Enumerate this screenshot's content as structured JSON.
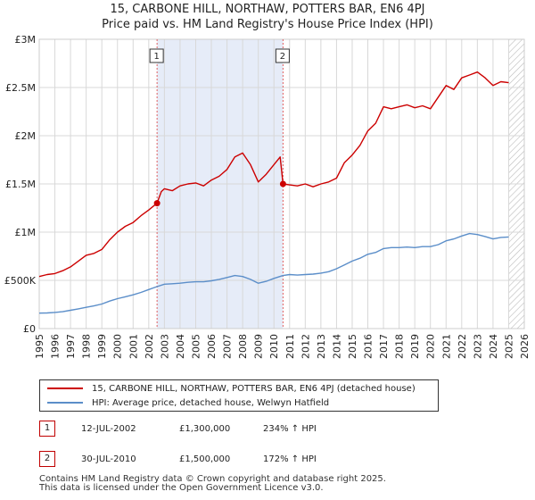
{
  "header": {
    "title_line1": "15, CARBONE HILL, NORTHAW, POTTERS BAR, EN6 4PJ",
    "title_line2": "Price paid vs. HM Land Registry's House Price Index (HPI)"
  },
  "chart_data": {
    "type": "line",
    "title": "15, CARBONE HILL, NORTHAW, POTTERS BAR, EN6 4PJ — Price paid vs. HM Land Registry's House Price Index (HPI)",
    "xlim": [
      1995,
      2026
    ],
    "ylim": [
      0,
      3000000
    ],
    "x_ticks": [
      1995,
      1996,
      1997,
      1998,
      1999,
      2000,
      2001,
      2002,
      2003,
      2004,
      2005,
      2006,
      2007,
      2008,
      2009,
      2010,
      2011,
      2012,
      2013,
      2014,
      2015,
      2016,
      2017,
      2018,
      2019,
      2020,
      2021,
      2022,
      2023,
      2024,
      2025,
      2026
    ],
    "y_ticks": [
      {
        "value": 0,
        "label": "£0"
      },
      {
        "value": 500000,
        "label": "£500K"
      },
      {
        "value": 1000000,
        "label": "£1M"
      },
      {
        "value": 1500000,
        "label": "£1.5M"
      },
      {
        "value": 2000000,
        "label": "£2M"
      },
      {
        "value": 2500000,
        "label": "£2.5M"
      },
      {
        "value": 3000000,
        "label": "£3M"
      }
    ],
    "grid": true,
    "shaded_period": [
      2002.53,
      2010.58
    ],
    "future_hatch_from": 2025.0,
    "colors": {
      "property": "#cc0000",
      "hpi": "#5b8ec9",
      "shade": "#e6ecf8",
      "marker_line": "#e06060"
    },
    "series": [
      {
        "name": "15, CARBONE HILL, NORTHAW, POTTERS BAR, EN6 4PJ (detached house)",
        "color": "#cc0000",
        "x": [
          1995.0,
          1995.5,
          1996.0,
          1996.5,
          1997.0,
          1997.5,
          1998.0,
          1998.5,
          1999.0,
          1999.5,
          2000.0,
          2000.5,
          2001.0,
          2001.5,
          2002.0,
          2002.53,
          2002.8,
          2003.0,
          2003.5,
          2004.0,
          2004.5,
          2005.0,
          2005.5,
          2006.0,
          2006.5,
          2007.0,
          2007.5,
          2008.0,
          2008.5,
          2009.0,
          2009.5,
          2010.0,
          2010.4,
          2010.58,
          2011.0,
          2011.5,
          2012.0,
          2012.5,
          2013.0,
          2013.5,
          2014.0,
          2014.5,
          2015.0,
          2015.5,
          2016.0,
          2016.5,
          2017.0,
          2017.5,
          2018.0,
          2018.5,
          2019.0,
          2019.5,
          2020.0,
          2020.5,
          2021.0,
          2021.5,
          2022.0,
          2022.5,
          2023.0,
          2023.5,
          2024.0,
          2024.5,
          2025.0
        ],
        "y": [
          540000,
          560000,
          570000,
          600000,
          640000,
          700000,
          760000,
          780000,
          820000,
          920000,
          1000000,
          1060000,
          1100000,
          1170000,
          1230000,
          1300000,
          1420000,
          1450000,
          1430000,
          1480000,
          1500000,
          1510000,
          1480000,
          1540000,
          1580000,
          1650000,
          1780000,
          1820000,
          1700000,
          1520000,
          1600000,
          1700000,
          1780000,
          1500000,
          1490000,
          1480000,
          1500000,
          1470000,
          1500000,
          1520000,
          1560000,
          1720000,
          1800000,
          1900000,
          2050000,
          2130000,
          2300000,
          2280000,
          2300000,
          2320000,
          2290000,
          2310000,
          2280000,
          2400000,
          2520000,
          2480000,
          2600000,
          2630000,
          2660000,
          2600000,
          2520000,
          2560000,
          2550000
        ]
      },
      {
        "name": "HPI: Average price, detached house, Welwyn Hatfield",
        "color": "#5b8ec9",
        "x": [
          1995.0,
          1995.5,
          1996.0,
          1996.5,
          1997.0,
          1997.5,
          1998.0,
          1998.5,
          1999.0,
          1999.5,
          2000.0,
          2000.5,
          2001.0,
          2001.5,
          2002.0,
          2002.53,
          2003.0,
          2003.5,
          2004.0,
          2004.5,
          2005.0,
          2005.5,
          2006.0,
          2006.5,
          2007.0,
          2007.5,
          2008.0,
          2008.5,
          2009.0,
          2009.5,
          2010.0,
          2010.58,
          2011.0,
          2011.5,
          2012.0,
          2012.5,
          2013.0,
          2013.5,
          2014.0,
          2014.5,
          2015.0,
          2015.5,
          2016.0,
          2016.5,
          2017.0,
          2017.5,
          2018.0,
          2018.5,
          2019.0,
          2019.5,
          2020.0,
          2020.5,
          2021.0,
          2021.5,
          2022.0,
          2022.5,
          2023.0,
          2023.5,
          2024.0,
          2024.5,
          2025.0
        ],
        "y": [
          160000,
          162000,
          168000,
          175000,
          190000,
          205000,
          220000,
          235000,
          255000,
          285000,
          310000,
          330000,
          350000,
          375000,
          405000,
          435000,
          460000,
          465000,
          470000,
          480000,
          485000,
          485000,
          495000,
          510000,
          530000,
          550000,
          540000,
          510000,
          470000,
          490000,
          520000,
          550000,
          560000,
          555000,
          560000,
          565000,
          575000,
          590000,
          620000,
          660000,
          700000,
          730000,
          770000,
          790000,
          830000,
          840000,
          840000,
          845000,
          840000,
          850000,
          850000,
          870000,
          910000,
          930000,
          960000,
          985000,
          975000,
          955000,
          930000,
          945000,
          950000
        ]
      }
    ],
    "annotations": [
      {
        "id": "1",
        "x": 2002.53,
        "y": 1300000
      },
      {
        "id": "2",
        "x": 2010.58,
        "y": 1500000
      }
    ]
  },
  "legend": {
    "property_label": "15, CARBONE HILL, NORTHAW, POTTERS BAR, EN6 4PJ (detached house)",
    "hpi_label": "HPI: Average price, detached house, Welwyn Hatfield"
  },
  "sales": [
    {
      "num": "1",
      "date": "12-JUL-2002",
      "price": "£1,300,000",
      "hpi": "234% ↑ HPI"
    },
    {
      "num": "2",
      "date": "30-JUL-2010",
      "price": "£1,500,000",
      "hpi": "172% ↑ HPI"
    }
  ],
  "footer": {
    "line1": "Contains HM Land Registry data © Crown copyright and database right 2025.",
    "line2": "This data is licensed under the Open Government Licence v3.0."
  }
}
